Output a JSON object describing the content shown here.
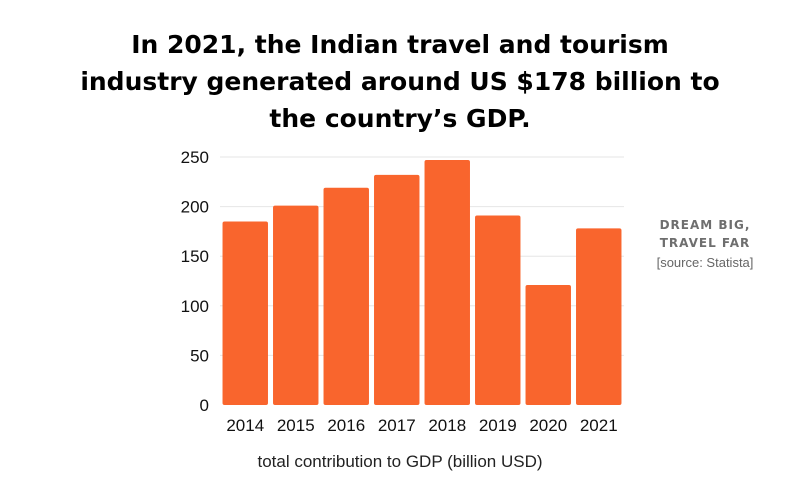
{
  "header": {
    "title_lines": [
      "In 2021, the Indian travel and tourism",
      "industry generated around US $178 billion to",
      "the country’s GDP."
    ]
  },
  "branding": {
    "lines": [
      "DREAM BIG,",
      "TRAVEL FAR"
    ],
    "source": "[source: Statista]"
  },
  "chart_data": {
    "type": "bar",
    "title": "In 2021, the Indian travel and tourism industry generated around US $178 billion to the country’s GDP.",
    "categories": [
      "2014",
      "2015",
      "2016",
      "2017",
      "2018",
      "2019",
      "2020",
      "2021"
    ],
    "values": [
      185,
      201,
      219,
      232,
      247,
      191,
      121,
      178
    ],
    "xlabel": "total contribution to GDP (billion USD)",
    "ylabel": "",
    "ylim": [
      0,
      250
    ],
    "yticks": [
      0,
      50,
      100,
      150,
      200,
      250
    ],
    "grid": true,
    "legend": "none",
    "bar_color": "#f9652d",
    "grid_color": "#e6e6e6"
  }
}
